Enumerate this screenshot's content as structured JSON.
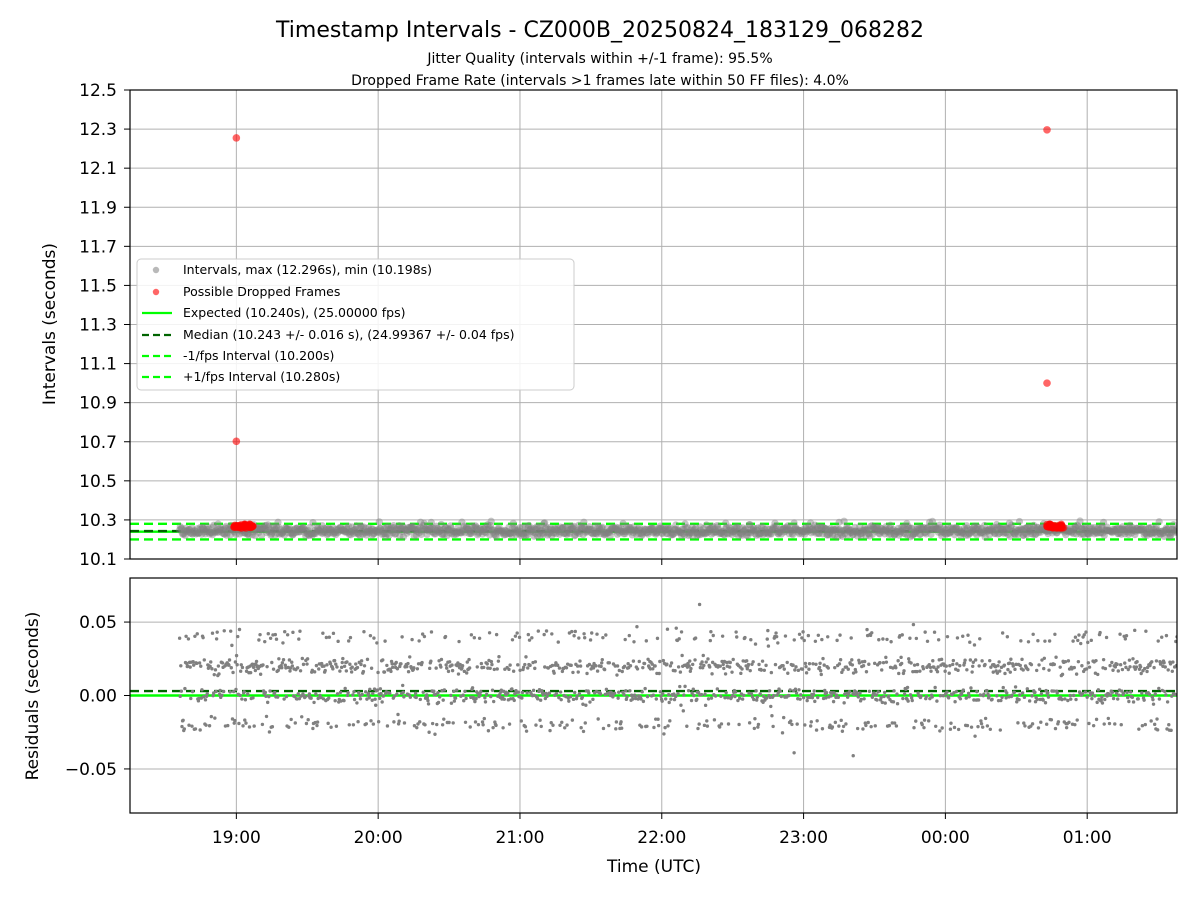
{
  "title": "Timestamp Intervals - CZ000B_20250824_183129_068282",
  "subtitle_1": "Jitter Quality (intervals within +/-1 frame): 95.5%",
  "subtitle_2": "Dropped Frame Rate (intervals >1 frames late within 50 FF files): 4.0%",
  "colors": {
    "intervals": "#808080",
    "dropped": "#ff0000",
    "expected": "#00ff00",
    "median": "#006400",
    "grid": "#b0b0b0"
  },
  "chart_data": [
    {
      "type": "scatter",
      "panel": "intervals",
      "xlabel": "",
      "ylabel": "Intervals (seconds)",
      "x_axis": "time",
      "xlim": [
        "18:15",
        "01:38"
      ],
      "ylim": [
        10.1,
        12.5
      ],
      "x_ticks": [
        "19:00",
        "20:00",
        "21:00",
        "22:00",
        "23:00",
        "00:00",
        "01:00"
      ],
      "y_ticks": [
        10.1,
        10.3,
        10.5,
        10.7,
        10.9,
        11.1,
        11.3,
        11.5,
        11.7,
        11.9,
        12.1,
        12.3,
        12.5
      ],
      "y_tick_labels": [
        "10.1",
        "10.3",
        "10.5",
        "10.7",
        "10.9",
        "11.1",
        "11.3",
        "11.5",
        "11.7",
        "11.9",
        "12.1",
        "12.3",
        "12.5"
      ],
      "grid": true,
      "legend_position": "center-left",
      "series": [
        {
          "name": "Intervals, max (12.296s), min (10.198s)",
          "kind": "scatter",
          "color": "#808080",
          "time_range": [
            "18:36",
            "01:38"
          ],
          "y_center": 10.243,
          "y_min": 10.198,
          "y_max": 10.305
        },
        {
          "name": "Possible Dropped Frames",
          "kind": "scatter",
          "color": "#ff0000",
          "points": [
            {
              "t": "19:00",
              "y": 12.255
            },
            {
              "t": "19:00",
              "y": 10.702
            },
            {
              "t": "00:43",
              "y": 12.296
            },
            {
              "t": "00:43",
              "y": 11.0
            },
            {
              "t": "19:00",
              "y": 10.27
            },
            {
              "t": "19:01",
              "y": 10.262
            },
            {
              "t": "19:02",
              "y": 10.275
            },
            {
              "t": "19:03",
              "y": 10.266
            },
            {
              "t": "19:04",
              "y": 10.258
            },
            {
              "t": "19:05",
              "y": 10.27
            },
            {
              "t": "19:06",
              "y": 10.263
            },
            {
              "t": "19:07",
              "y": 10.268
            },
            {
              "t": "00:43",
              "y": 10.276
            },
            {
              "t": "00:44",
              "y": 10.262
            },
            {
              "t": "00:45",
              "y": 10.27
            },
            {
              "t": "00:46",
              "y": 10.264
            },
            {
              "t": "00:47",
              "y": 10.258
            },
            {
              "t": "00:48",
              "y": 10.272
            },
            {
              "t": "00:49",
              "y": 10.266
            },
            {
              "t": "00:50",
              "y": 10.26
            }
          ]
        },
        {
          "name": "Expected (10.240s), (25.00000 fps)",
          "kind": "hline",
          "y": 10.24,
          "style": "solid",
          "color": "#00ff00"
        },
        {
          "name": "Median (10.243 +/- 0.016 s), (24.99367 +/- 0.04 fps)",
          "kind": "hline",
          "y": 10.243,
          "style": "dashed",
          "color": "#006400"
        },
        {
          "name": "-1/fps Interval (10.200s)",
          "kind": "hline",
          "y": 10.2,
          "style": "dashed",
          "color": "#00ff00"
        },
        {
          "name": "+1/fps Interval (10.280s)",
          "kind": "hline",
          "y": 10.28,
          "style": "dashed",
          "color": "#00ff00"
        }
      ]
    },
    {
      "type": "scatter",
      "panel": "residuals",
      "xlabel": "Time (UTC)",
      "ylabel": "Residuals (seconds)",
      "x_axis": "time",
      "xlim": [
        "18:15",
        "01:38"
      ],
      "ylim": [
        -0.08,
        0.08
      ],
      "x_ticks": [
        "19:00",
        "20:00",
        "21:00",
        "22:00",
        "23:00",
        "00:00",
        "01:00"
      ],
      "y_ticks": [
        0.05,
        0.0,
        -0.05
      ],
      "y_tick_labels": [
        "0.05",
        "0.00",
        "−0.05"
      ],
      "grid": true,
      "series": [
        {
          "name": "",
          "kind": "scatter",
          "color": "#808080",
          "time_range": [
            "18:36",
            "01:38"
          ],
          "levels": [
            -0.02,
            0.0,
            0.02,
            0.04
          ],
          "points": [
            {
              "t": "22:16",
              "y": 0.062
            },
            {
              "t": "23:21",
              "y": -0.041
            },
            {
              "t": "22:56",
              "y": -0.039
            }
          ]
        },
        {
          "name": "",
          "kind": "hline",
          "y": 0.0,
          "style": "solid",
          "color": "#00ff00"
        },
        {
          "name": "",
          "kind": "hline",
          "y": 0.003,
          "style": "dashed",
          "color": "#006400"
        }
      ]
    }
  ]
}
